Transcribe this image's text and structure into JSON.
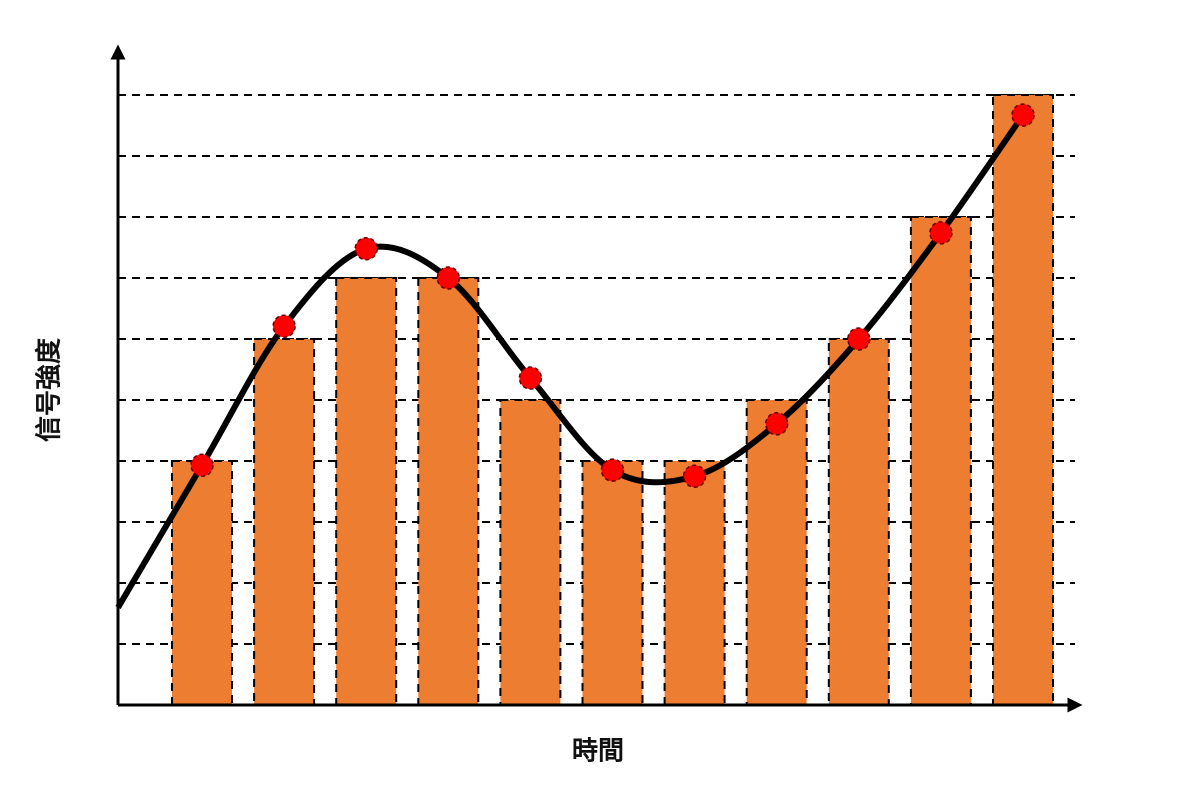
{
  "chart_data": {
    "type": "bar",
    "xlabel": "時間",
    "ylabel": "信号強度",
    "categories": [
      null,
      null,
      null,
      null,
      null,
      null,
      null,
      null,
      null,
      null,
      null
    ],
    "values": [
      4,
      6,
      7,
      7,
      5,
      4,
      4,
      5,
      6,
      8,
      10
    ],
    "color": "#ed7d31",
    "line": {
      "color": "#000000",
      "point_color": "#ff0000",
      "values": [
        3.93,
        6.21,
        7.48,
        7.0,
        5.36,
        3.85,
        3.75,
        4.61,
        6.0,
        7.74,
        9.67
      ]
    },
    "ylim": [
      0,
      10
    ],
    "yticks": [
      1,
      2,
      3,
      4,
      5,
      6,
      7,
      8,
      9,
      10
    ],
    "grid": true
  }
}
